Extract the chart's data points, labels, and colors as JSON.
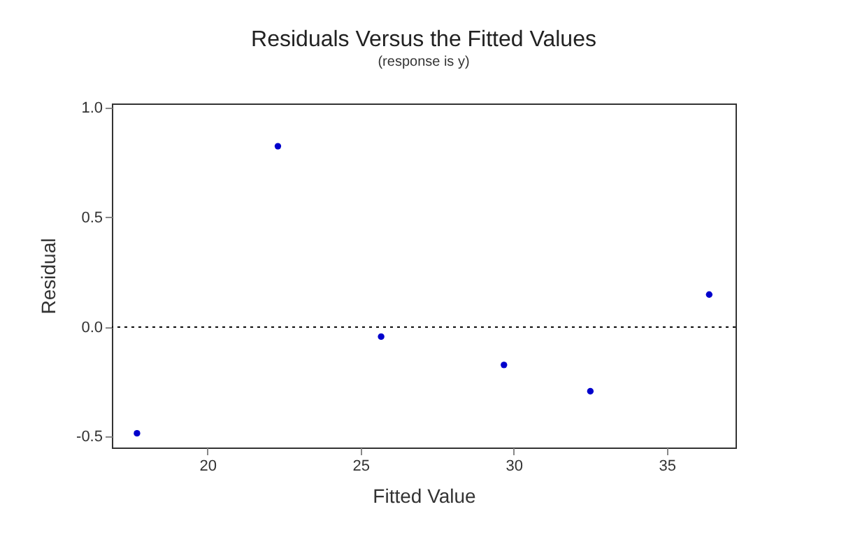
{
  "chart_data": {
    "type": "scatter",
    "title": "Residuals Versus the Fitted Values",
    "subtitle": "(response is y)",
    "xlabel": "Fitted Value",
    "ylabel": "Residual",
    "x": [
      17.7,
      22.3,
      25.67,
      29.68,
      32.5,
      36.38
    ],
    "series": [
      {
        "color": "#0000cc",
        "values": [
          -0.485,
          0.825,
          -0.044,
          -0.173,
          -0.293,
          0.148
        ]
      }
    ],
    "xlim": [
      16.88,
      37.24
    ],
    "xticks": [
      20,
      25,
      30,
      35
    ],
    "ylim": [
      -0.55,
      1.02
    ],
    "yticks": [
      {
        "value": -0.5,
        "label": "-0.5"
      },
      {
        "value": 0,
        "label": "0.0"
      },
      {
        "value": 0.5,
        "label": "0.5"
      },
      {
        "value": 1,
        "label": "1.0"
      }
    ],
    "ref_lines": [
      {
        "axis": "y",
        "value": 0,
        "line_style": "dotted",
        "color": "#000000"
      }
    ],
    "marker": "circle",
    "grid": false
  }
}
